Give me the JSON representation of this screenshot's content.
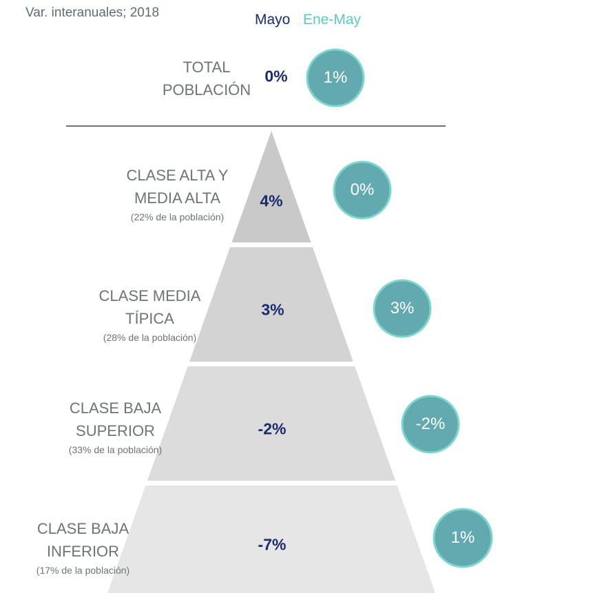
{
  "subtitle": "Var. interanuales; 2018",
  "legend": {
    "mayo": "Mayo",
    "ene_may": "Ene-May"
  },
  "colors": {
    "mayo_text": "#1b2a6b",
    "ene_may_text": "#5ec7c2",
    "bubble_fill": "#63aab0",
    "bubble_stroke": "#7ed6cf",
    "pyramid_fills": [
      "#c9c9c9",
      "#d3d3d3",
      "#dcdcdc",
      "#e6e6e6"
    ],
    "divider": "#6f6f6f"
  },
  "chart_data": {
    "type": "table",
    "columns": [
      "Mayo",
      "Ene-May"
    ],
    "total": {
      "label": [
        "TOTAL",
        "POBLACIÓN"
      ],
      "mayo": "0%",
      "ene_may": "1%"
    },
    "rows": [
      {
        "label": [
          "CLASE ALTA Y",
          "MEDIA ALTA"
        ],
        "population": "(22% de la población)",
        "mayo": "4%",
        "ene_may": "0%"
      },
      {
        "label": [
          "CLASE MEDIA",
          "TÍPICA"
        ],
        "population": "(28% de la población)",
        "mayo": "3%",
        "ene_may": "3%"
      },
      {
        "label": [
          "CLASE BAJA",
          "SUPERIOR"
        ],
        "population": "(33% de la población)",
        "mayo": "-2%",
        "ene_may": "-2%"
      },
      {
        "label": [
          "CLASE BAJA",
          "INFERIOR"
        ],
        "population": "(17% de la población)",
        "mayo": "-7%",
        "ene_may": "1%"
      }
    ]
  }
}
